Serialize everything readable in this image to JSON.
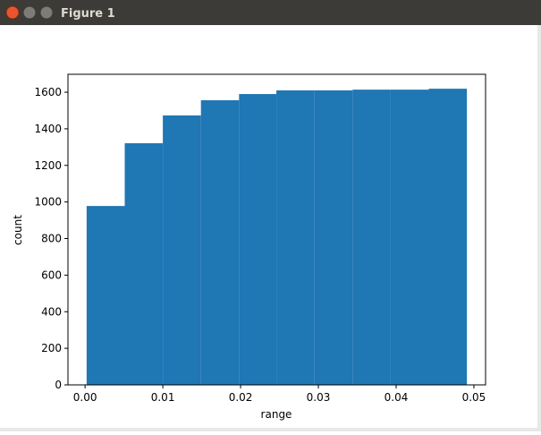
{
  "window": {
    "title": "Figure 1"
  },
  "chart_data": {
    "type": "histogram",
    "xlabel": "range",
    "ylabel": "count",
    "bins": [
      0.0002,
      0.0051,
      0.01,
      0.0149,
      0.0198,
      0.0246,
      0.0295,
      0.0344,
      0.0393,
      0.0442,
      0.0491
    ],
    "values": [
      978,
      1321,
      1473,
      1556,
      1590,
      1610,
      1610,
      1614,
      1614,
      1619
    ],
    "color": "#1f77b4",
    "xlim": [
      -0.0022,
      0.0515
    ],
    "xticks": [
      {
        "value": 0,
        "label": "0.00"
      },
      {
        "value": 0.01,
        "label": "0.01"
      },
      {
        "value": 0.02,
        "label": "0.02"
      },
      {
        "value": 0.03,
        "label": "0.03"
      },
      {
        "value": 0.04,
        "label": "0.04"
      },
      {
        "value": 0.05,
        "label": "0.05"
      }
    ],
    "ylim": [
      0,
      1698
    ],
    "yticks": [
      0,
      200,
      400,
      600,
      800,
      1000,
      1200,
      1400,
      1600
    ]
  }
}
